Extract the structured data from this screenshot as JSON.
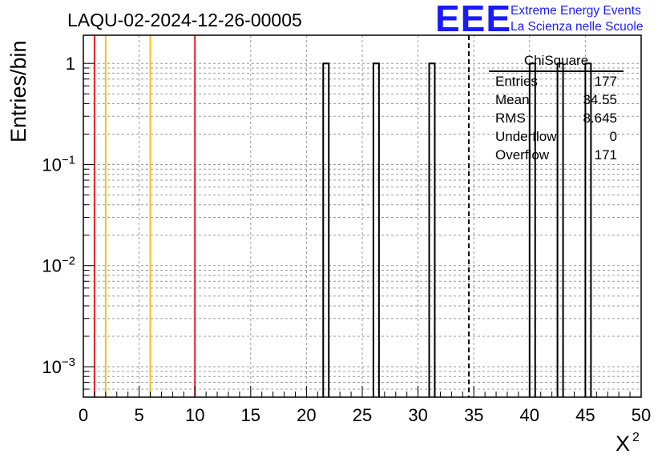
{
  "chart_data": {
    "type": "bar",
    "title": "LAQU-02-2024-12-26-00005",
    "xlabel": "X",
    "xlabel_sup": "2",
    "ylabel": "Entries/bin",
    "xlim": [
      0,
      50
    ],
    "ylim_log": [
      0.0005,
      1.9
    ],
    "log_y": true,
    "grid": true,
    "x_ticks": [
      "0",
      "5",
      "10",
      "15",
      "20",
      "25",
      "30",
      "35",
      "40",
      "45",
      "50"
    ],
    "y_ticks": [
      {
        "value": 1,
        "label": "1",
        "exp": ""
      },
      {
        "value": 0.1,
        "label": "10",
        "exp": "−1"
      },
      {
        "value": 0.01,
        "label": "10",
        "exp": "−2"
      },
      {
        "value": 0.001,
        "label": "10",
        "exp": "−3"
      }
    ],
    "bins": [
      {
        "x_low": 21.5,
        "x_high": 22.0,
        "count": 1
      },
      {
        "x_low": 26.0,
        "x_high": 26.5,
        "count": 1
      },
      {
        "x_low": 31.0,
        "x_high": 31.5,
        "count": 1
      },
      {
        "x_low": 40.0,
        "x_high": 40.5,
        "count": 1
      },
      {
        "x_low": 42.5,
        "x_high": 43.0,
        "count": 1
      },
      {
        "x_low": 45.0,
        "x_high": 45.5,
        "count": 1
      }
    ],
    "reference_lines": [
      {
        "x": 1,
        "color": "#e8202a",
        "style": "solid"
      },
      {
        "x": 2,
        "color": "#f2c318",
        "style": "solid"
      },
      {
        "x": 6,
        "color": "#f2c318",
        "style": "solid"
      },
      {
        "x": 10,
        "color": "#e8202a",
        "style": "solid"
      },
      {
        "x": 34.55,
        "color": "#000000",
        "style": "dashed"
      }
    ],
    "stats": {
      "name": "ChiSquare",
      "rows": [
        {
          "label": "Entries",
          "value": "177"
        },
        {
          "label": "Mean",
          "value": "34.55"
        },
        {
          "label": "RMS",
          "value": "8.645"
        },
        {
          "label": "Underflow",
          "value": "0"
        },
        {
          "label": "Overflow",
          "value": "171"
        }
      ]
    }
  },
  "logo": {
    "mark": "EEE",
    "line1": "Extreme Energy Events",
    "line2": "La Scienza nelle Scuole",
    "color": "#1a1aff"
  }
}
